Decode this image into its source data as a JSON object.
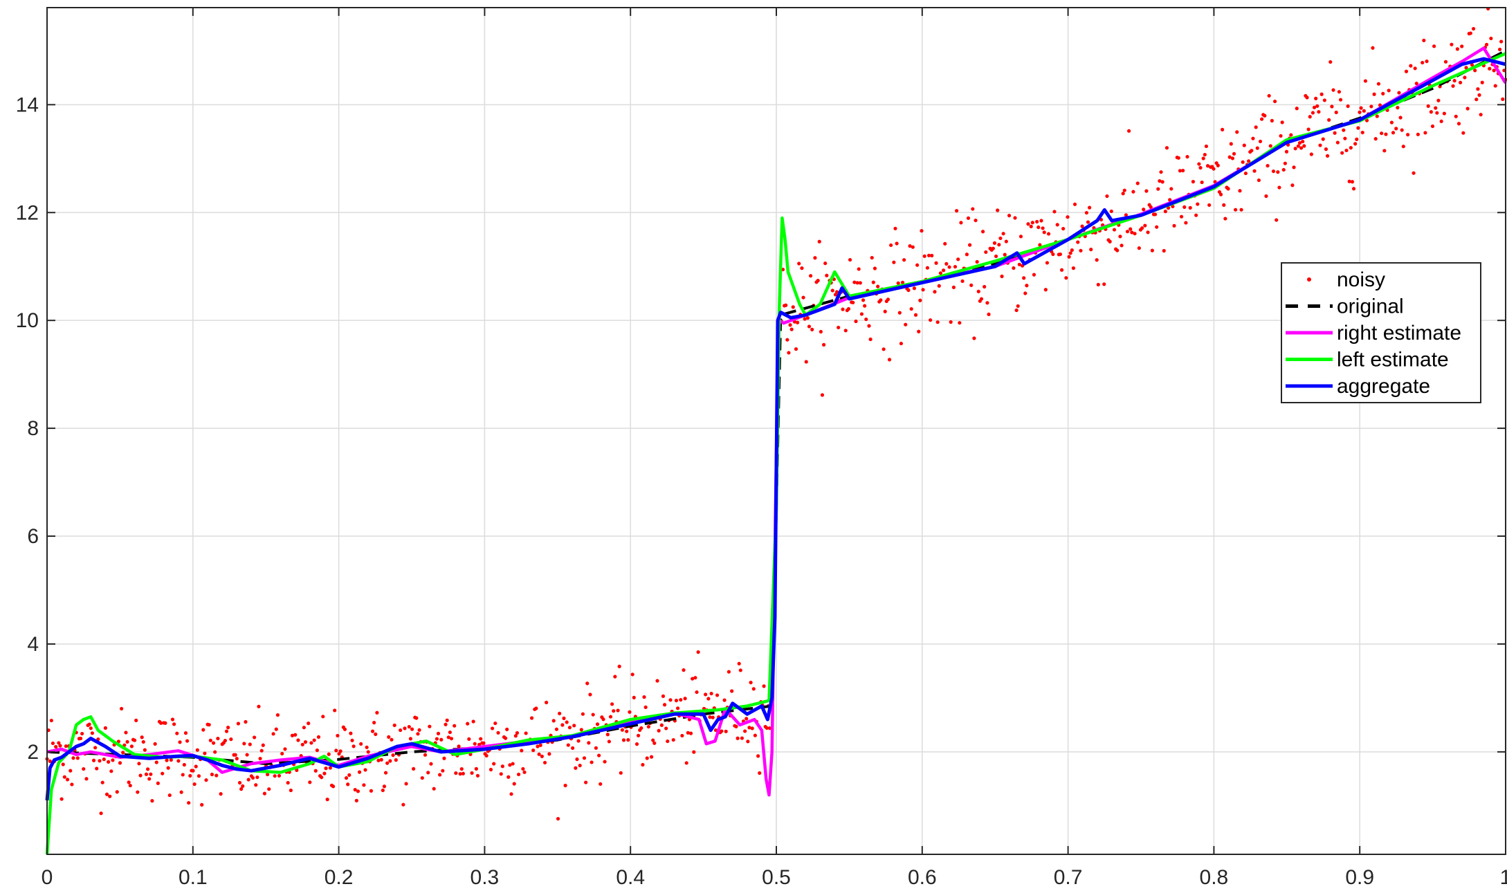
{
  "chart_data": {
    "type": "line",
    "title": "",
    "xlabel": "",
    "ylabel": "",
    "xlim": [
      0,
      1
    ],
    "ylim": [
      0.1,
      15.8
    ],
    "grid": true,
    "legend_location": "east (right side, upper middle)",
    "x_ticks": [
      "0",
      "0.1",
      "0.2",
      "0.3",
      "0.4",
      "0.5",
      "0.6",
      "0.7",
      "0.8",
      "0.9",
      "1"
    ],
    "y_ticks": [
      "2",
      "4",
      "6",
      "8",
      "10",
      "12",
      "14"
    ],
    "colors": {
      "noisy": "#ff0000",
      "original": "#000000",
      "right_estimate": "#ff00ff",
      "left_estimate": "#00ff00",
      "aggregate": "#0000ff",
      "grid": "#dcdcdc",
      "axes": "#262626"
    },
    "legend": [
      {
        "key": "noisy",
        "label": "noisy",
        "style": "dot"
      },
      {
        "key": "original",
        "label": "original",
        "style": "dashed"
      },
      {
        "key": "right_estimate",
        "label": "right estimate",
        "style": "line"
      },
      {
        "key": "left_estimate",
        "label": "left estimate",
        "style": "line"
      },
      {
        "key": "aggregate",
        "label": "aggregate",
        "style": "line"
      }
    ],
    "series": [
      {
        "key": "original",
        "name": "original",
        "x": [
          0,
          0.1,
          0.15,
          0.2,
          0.25,
          0.3,
          0.35,
          0.4,
          0.45,
          0.497,
          0.5,
          0.503,
          0.55,
          0.6,
          0.65,
          0.7,
          0.75,
          0.8,
          0.85,
          0.9,
          0.95,
          1.0
        ],
        "y": [
          2.0,
          1.9,
          1.78,
          1.86,
          2.0,
          2.08,
          2.22,
          2.48,
          2.7,
          2.85,
          6.5,
          10.1,
          10.45,
          10.7,
          11.05,
          11.5,
          11.95,
          12.5,
          13.3,
          13.75,
          14.3,
          15.0
        ]
      },
      {
        "key": "right_estimate",
        "name": "right estimate",
        "x": [
          0,
          0.01,
          0.02,
          0.03,
          0.05,
          0.07,
          0.09,
          0.11,
          0.12,
          0.14,
          0.16,
          0.18,
          0.2,
          0.22,
          0.25,
          0.27,
          0.3,
          0.33,
          0.36,
          0.4,
          0.43,
          0.447,
          0.452,
          0.458,
          0.465,
          0.475,
          0.485,
          0.49,
          0.493,
          0.495,
          0.497,
          0.5,
          0.502,
          0.505,
          0.51,
          0.52,
          0.55,
          0.6,
          0.65,
          0.7,
          0.75,
          0.8,
          0.85,
          0.9,
          0.95,
          0.97,
          0.985,
          1.0
        ],
        "y": [
          2.0,
          2.05,
          1.95,
          2.0,
          1.9,
          1.95,
          2.02,
          1.85,
          1.62,
          1.78,
          1.85,
          1.9,
          1.75,
          1.92,
          2.1,
          2.0,
          2.1,
          2.2,
          2.28,
          2.55,
          2.72,
          2.6,
          2.15,
          2.2,
          2.8,
          2.5,
          2.6,
          2.4,
          1.5,
          1.2,
          2.0,
          7.5,
          10.0,
          9.95,
          10.0,
          10.1,
          10.42,
          10.72,
          11.0,
          11.5,
          11.97,
          12.5,
          13.3,
          13.72,
          14.5,
          14.8,
          15.05,
          14.4
        ]
      },
      {
        "key": "left_estimate",
        "name": "left estimate",
        "x": [
          0,
          0.003,
          0.008,
          0.015,
          0.02,
          0.025,
          0.03,
          0.035,
          0.045,
          0.06,
          0.08,
          0.1,
          0.12,
          0.14,
          0.16,
          0.18,
          0.19,
          0.2,
          0.22,
          0.24,
          0.26,
          0.28,
          0.3,
          0.33,
          0.36,
          0.4,
          0.43,
          0.46,
          0.48,
          0.495,
          0.5,
          0.502,
          0.504,
          0.506,
          0.508,
          0.512,
          0.516,
          0.52,
          0.53,
          0.54,
          0.55,
          0.6,
          0.65,
          0.7,
          0.75,
          0.8,
          0.85,
          0.9,
          0.95,
          1.0
        ],
        "y": [
          0.1,
          1.3,
          1.8,
          2.0,
          2.5,
          2.6,
          2.65,
          2.4,
          2.2,
          1.95,
          1.9,
          1.92,
          1.85,
          1.65,
          1.62,
          1.78,
          1.92,
          1.72,
          1.82,
          2.1,
          2.2,
          1.95,
          2.05,
          2.22,
          2.3,
          2.6,
          2.72,
          2.78,
          2.85,
          2.95,
          6.5,
          10.2,
          11.9,
          11.5,
          10.9,
          10.6,
          10.3,
          10.1,
          10.3,
          10.9,
          10.45,
          10.72,
          11.1,
          11.5,
          11.95,
          12.45,
          13.35,
          13.7,
          14.35,
          14.95
        ]
      },
      {
        "key": "aggregate",
        "name": "aggregate",
        "x": [
          0,
          0.002,
          0.005,
          0.01,
          0.015,
          0.02,
          0.025,
          0.03,
          0.04,
          0.05,
          0.07,
          0.09,
          0.1,
          0.11,
          0.12,
          0.13,
          0.14,
          0.16,
          0.18,
          0.2,
          0.22,
          0.24,
          0.25,
          0.27,
          0.3,
          0.33,
          0.36,
          0.4,
          0.43,
          0.45,
          0.455,
          0.46,
          0.465,
          0.47,
          0.48,
          0.49,
          0.494,
          0.497,
          0.499,
          0.501,
          0.503,
          0.51,
          0.52,
          0.53,
          0.54,
          0.545,
          0.55,
          0.6,
          0.65,
          0.665,
          0.67,
          0.7,
          0.72,
          0.725,
          0.73,
          0.75,
          0.8,
          0.85,
          0.9,
          0.95,
          0.97,
          0.985,
          1.0
        ],
        "y": [
          1.1,
          1.7,
          1.85,
          1.9,
          2.0,
          2.1,
          2.15,
          2.25,
          2.1,
          1.92,
          1.88,
          1.92,
          1.93,
          1.85,
          1.75,
          1.68,
          1.65,
          1.75,
          1.88,
          1.72,
          1.88,
          2.1,
          2.15,
          2.0,
          2.05,
          2.15,
          2.28,
          2.52,
          2.7,
          2.7,
          2.4,
          2.6,
          2.65,
          2.9,
          2.7,
          2.85,
          2.6,
          3.0,
          4.5,
          10.0,
          10.15,
          10.05,
          10.1,
          10.2,
          10.3,
          10.6,
          10.4,
          10.7,
          11.0,
          11.25,
          11.05,
          11.5,
          11.85,
          12.05,
          11.85,
          11.95,
          12.48,
          13.3,
          13.72,
          14.45,
          14.75,
          14.85,
          14.75
        ]
      }
    ]
  }
}
